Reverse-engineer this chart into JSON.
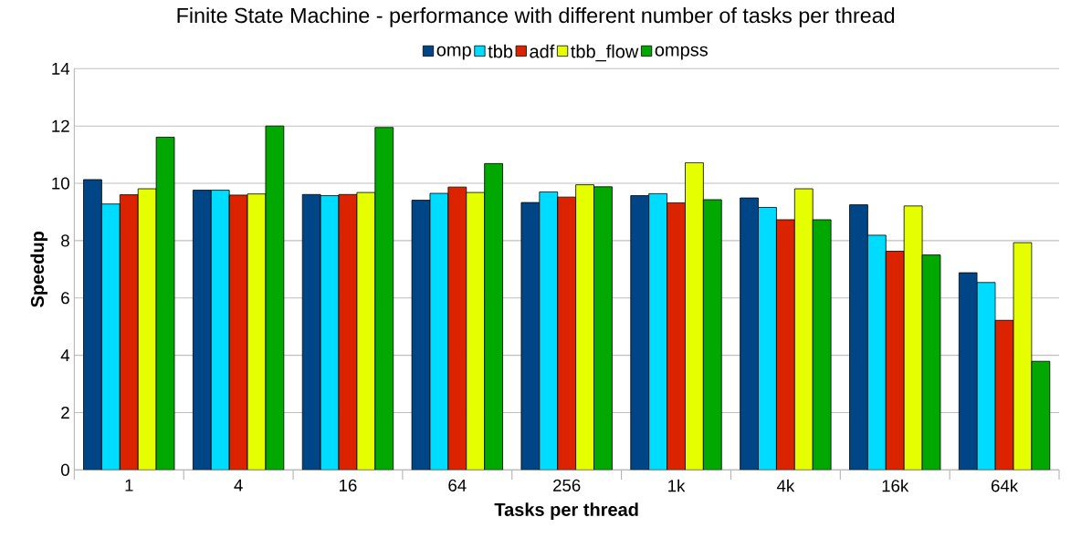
{
  "chart_data": {
    "type": "bar",
    "title": "Finite State Machine - performance with different number of tasks per thread",
    "xlabel": "Tasks per thread",
    "ylabel": "Speedup",
    "categories": [
      "1",
      "4",
      "16",
      "64",
      "256",
      "1k",
      "4k",
      "16k",
      "64k"
    ],
    "series": [
      {
        "name": "omp",
        "color": "#004586",
        "values": [
          10.13,
          9.76,
          9.61,
          9.41,
          9.33,
          9.57,
          9.49,
          9.25,
          6.88
        ]
      },
      {
        "name": "tbb",
        "color": "#00dcff",
        "values": [
          9.28,
          9.76,
          9.57,
          9.65,
          9.7,
          9.64,
          9.16,
          8.19,
          6.54
        ]
      },
      {
        "name": "adf",
        "color": "#dc2300",
        "values": [
          9.6,
          9.59,
          9.61,
          9.87,
          9.52,
          9.32,
          8.73,
          7.63,
          5.22
        ]
      },
      {
        "name": "tbb_flow",
        "color": "#e6ff00",
        "values": [
          9.81,
          9.63,
          9.68,
          9.68,
          9.95,
          10.72,
          9.81,
          9.21,
          7.93
        ]
      },
      {
        "name": "ompss",
        "color": "#00a800",
        "values": [
          11.61,
          12.0,
          11.95,
          10.69,
          9.88,
          9.43,
          8.73,
          7.5,
          3.79
        ]
      }
    ],
    "ylim": [
      0,
      14
    ],
    "yticks": [
      0,
      2,
      4,
      6,
      8,
      10,
      12,
      14
    ],
    "grid": "y",
    "legend": "top"
  }
}
